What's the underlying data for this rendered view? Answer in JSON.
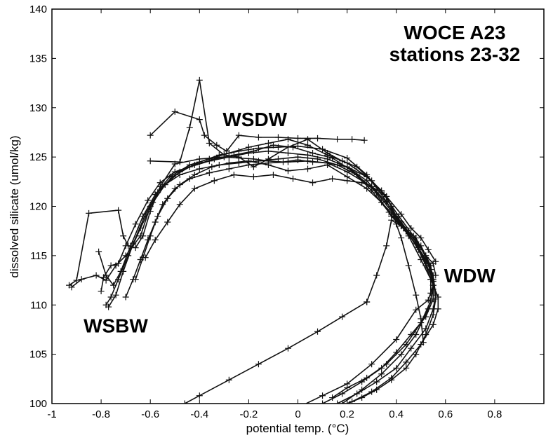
{
  "chart_data": {
    "type": "line",
    "title": "WOCE A23",
    "subtitle": "stations 23-32",
    "xlabel": "potential temp. (°C)",
    "ylabel": "dissolved silicate (umol/kg)",
    "xlim": [
      -1,
      1
    ],
    "ylim": [
      100,
      140
    ],
    "xticks": [
      -1,
      -0.8,
      -0.6,
      -0.4,
      -0.2,
      0,
      0.2,
      0.4,
      0.6,
      0.8
    ],
    "xtick_labels": [
      "-1",
      "-0.8",
      "-0.6",
      "-0.4",
      "-0.2",
      "0",
      "0.2",
      "0.4",
      "0.6",
      "0.8"
    ],
    "yticks": [
      100,
      105,
      110,
      115,
      120,
      125,
      130,
      135,
      140
    ],
    "ytick_labels": [
      "100",
      "105",
      "110",
      "115",
      "120",
      "125",
      "130",
      "135",
      "140"
    ],
    "marker": "+",
    "annotations": [
      {
        "text": "WSDW",
        "x": -0.3,
        "y": 130
      },
      {
        "text": "WDW",
        "x": 0.6,
        "y": 113
      },
      {
        "text": "WSBW",
        "x": -0.82,
        "y": 108.5
      }
    ],
    "series": [
      {
        "x": [
          -0.93,
          -0.9,
          -0.85,
          -0.73,
          -0.71,
          -0.69,
          -0.66,
          -0.63,
          -0.6,
          -0.56,
          -0.5,
          -0.4,
          -0.3,
          -0.24,
          -0.18,
          -0.12,
          -0.06,
          0.0,
          0.06,
          0.12,
          0.2,
          0.3,
          0.38,
          0.44,
          0.5,
          0.54,
          0.55,
          0.53,
          0.48,
          0.4,
          0.3,
          0.2,
          0.1,
          0.0
        ],
        "y": [
          112.0,
          112.5,
          119.3,
          119.6,
          117.0,
          116.0,
          115.8,
          117.0,
          119.5,
          122.0,
          124.3,
          124.8,
          125.0,
          124.9,
          124.8,
          124.6,
          124.5,
          124.7,
          124.5,
          124.4,
          123.5,
          122.0,
          119.0,
          117.5,
          116.0,
          114.0,
          112.0,
          110.5,
          109.5,
          106.5,
          104.0,
          102.0,
          100.8,
          99.6
        ]
      },
      {
        "x": [
          -0.92,
          -0.88,
          -0.82,
          -0.78,
          -0.74,
          -0.7,
          -0.64,
          -0.6,
          -0.54,
          -0.48,
          -0.4,
          -0.32,
          -0.24,
          -0.16,
          -0.08,
          0.0,
          0.1,
          0.2,
          0.28,
          0.36,
          0.42,
          0.48,
          0.53,
          0.55,
          0.54,
          0.5,
          0.44,
          0.36,
          0.28,
          0.2,
          0.14
        ],
        "y": [
          111.8,
          112.6,
          113.0,
          112.5,
          114.0,
          115.0,
          117.0,
          120.0,
          122.2,
          123.5,
          124.5,
          125.2,
          125.6,
          125.9,
          126.0,
          126.1,
          125.8,
          124.9,
          123.2,
          120.5,
          118.0,
          116.2,
          114.2,
          112.0,
          110.4,
          108.2,
          106.0,
          104.0,
          102.6,
          101.6,
          100.6
        ]
      },
      {
        "x": [
          -0.8,
          -0.79,
          -0.76,
          -0.73,
          -0.7,
          -0.66,
          -0.61,
          -0.56,
          -0.5,
          -0.42,
          -0.34,
          -0.26,
          -0.18,
          -0.1,
          -0.02,
          0.06,
          0.14,
          0.22,
          0.3,
          0.37,
          0.43,
          0.49,
          0.54,
          0.55,
          0.53,
          0.48,
          0.42,
          0.34,
          0.26,
          0.18
        ],
        "y": [
          111.4,
          112.8,
          114.0,
          114.2,
          116.0,
          118.2,
          120.6,
          122.4,
          123.5,
          124.2,
          124.8,
          125.2,
          125.6,
          126.2,
          126.0,
          125.4,
          124.9,
          123.6,
          121.6,
          119.4,
          117.8,
          115.8,
          113.6,
          111.6,
          109.6,
          107.0,
          105.0,
          103.0,
          101.4,
          100.0
        ]
      },
      {
        "x": [
          -0.81,
          -0.78,
          -0.75,
          -0.72,
          -0.68,
          -0.63,
          -0.58,
          -0.52,
          -0.44,
          -0.36,
          -0.28,
          -0.2,
          -0.12,
          -0.04,
          0.04,
          0.12,
          0.2,
          0.28,
          0.35,
          0.41,
          0.47,
          0.52,
          0.55,
          0.56,
          0.55,
          0.52,
          0.46,
          0.4,
          0.32,
          0.24,
          0.16,
          0.08
        ],
        "y": [
          115.4,
          113.0,
          112.0,
          113.4,
          116.0,
          119.0,
          121.2,
          123.0,
          124.2,
          124.8,
          125.4,
          126.0,
          126.4,
          126.8,
          126.2,
          125.2,
          124.4,
          123.0,
          121.2,
          119.0,
          117.0,
          115.0,
          113.0,
          111.0,
          109.6,
          107.6,
          105.6,
          103.6,
          102.2,
          101.0,
          100.0,
          99.4
        ]
      },
      {
        "x": [
          -0.78,
          -0.76,
          -0.73,
          -0.69,
          -0.64,
          -0.59,
          -0.54,
          -0.48,
          -0.4,
          -0.32,
          -0.24,
          -0.16,
          -0.08,
          0.0,
          0.08,
          0.16,
          0.24,
          0.32,
          0.39,
          0.45,
          0.5,
          0.54,
          0.57,
          0.57,
          0.55,
          0.5,
          0.44,
          0.38,
          0.3,
          0.22,
          0.14,
          0.06
        ],
        "y": [
          110.0,
          110.8,
          112.6,
          115.0,
          117.8,
          120.4,
          122.2,
          123.2,
          123.8,
          124.2,
          124.4,
          124.6,
          124.8,
          125.0,
          124.8,
          124.2,
          123.2,
          121.4,
          119.2,
          117.0,
          114.6,
          112.6,
          110.8,
          109.6,
          108.0,
          106.0,
          104.2,
          102.6,
          101.2,
          100.2,
          99.4,
          99.0
        ]
      },
      {
        "x": [
          -0.77,
          -0.74,
          -0.71,
          -0.67,
          -0.62,
          -0.57,
          -0.51,
          -0.44,
          -0.36,
          -0.28,
          -0.2,
          -0.12,
          -0.04,
          0.04,
          0.12,
          0.2,
          0.28,
          0.36,
          0.42,
          0.48,
          0.52,
          0.55,
          0.55,
          0.52,
          0.46,
          0.4,
          0.34,
          0.26,
          0.18,
          0.1,
          0.02
        ],
        "y": [
          109.8,
          111.0,
          113.4,
          116.2,
          119.2,
          121.4,
          123.0,
          124.0,
          124.6,
          125.0,
          125.4,
          125.6,
          125.4,
          125.2,
          124.8,
          124.0,
          122.6,
          120.4,
          118.4,
          116.4,
          114.2,
          112.4,
          110.6,
          108.8,
          107.0,
          105.2,
          103.6,
          102.2,
          101.0,
          100.0,
          99.2
        ]
      },
      {
        "x": [
          -0.7,
          -0.67,
          -0.64,
          -0.61,
          -0.58,
          -0.55,
          -0.5,
          -0.44,
          -0.36,
          -0.28,
          -0.2,
          -0.12,
          -0.04,
          0.04,
          0.12,
          0.2,
          0.28,
          0.34,
          0.38,
          0.4,
          0.42,
          0.45,
          0.48,
          0.5,
          0.51
        ],
        "y": [
          110.8,
          112.6,
          114.6,
          116.6,
          118.4,
          120.2,
          121.8,
          122.8,
          123.4,
          123.8,
          124.2,
          124.4,
          124.5,
          124.6,
          124.4,
          124.0,
          123.0,
          121.6,
          120.0,
          118.2,
          116.8,
          114.0,
          111.0,
          108.6,
          106.2
        ]
      },
      {
        "x": [
          -0.66,
          -0.63,
          -0.6,
          -0.57,
          -0.53,
          -0.48,
          -0.42,
          -0.35,
          -0.28,
          -0.2,
          -0.12,
          -0.04,
          0.04,
          0.12,
          0.2,
          0.28,
          0.34,
          0.4,
          0.45,
          0.49,
          0.52,
          0.54,
          0.54
        ],
        "y": [
          112.6,
          114.8,
          117.0,
          119.0,
          120.8,
          122.2,
          123.2,
          124.0,
          124.4,
          124.6,
          124.2,
          123.6,
          123.8,
          124.2,
          123.0,
          121.8,
          120.4,
          118.8,
          117.2,
          115.6,
          114.0,
          112.6,
          111.2
        ]
      },
      {
        "x": [
          -0.62,
          -0.58,
          -0.53,
          -0.48,
          -0.42,
          -0.34,
          -0.26,
          -0.18,
          -0.1,
          -0.02,
          0.06,
          0.14,
          0.2,
          0.26,
          0.3,
          0.36,
          0.4,
          0.44,
          0.48,
          0.52,
          0.55,
          0.56
        ],
        "y": [
          114.8,
          116.6,
          118.4,
          120.2,
          121.8,
          122.6,
          123.2,
          123.0,
          123.2,
          122.8,
          122.4,
          122.8,
          122.6,
          122.4,
          122.0,
          121.0,
          119.0,
          117.6,
          116.4,
          115.0,
          114.2,
          113.0
        ]
      },
      {
        "x": [
          -0.6,
          -0.5,
          -0.4,
          -0.38,
          -0.33,
          -0.29,
          -0.24,
          -0.16,
          -0.08,
          0.0,
          0.08,
          0.16,
          0.22,
          0.27
        ],
        "y": [
          127.2,
          129.6,
          128.8,
          127.2,
          126.2,
          125.6,
          127.2,
          127.0,
          127.0,
          126.9,
          126.9,
          126.8,
          126.8,
          126.7
        ]
      },
      {
        "x": [
          -0.6,
          -0.48,
          -0.44,
          -0.4,
          -0.36,
          -0.3,
          -0.24,
          -0.18,
          -0.12,
          -0.04,
          0.04,
          0.12,
          0.18,
          0.24,
          0.3,
          0.36,
          0.42,
          0.46,
          0.5,
          0.53,
          0.56
        ],
        "y": [
          124.6,
          124.5,
          128.0,
          132.8,
          126.4,
          125.2,
          125.0,
          124.0,
          124.8,
          126.0,
          126.8,
          125.4,
          124.6,
          124.0,
          122.6,
          121.0,
          119.2,
          117.8,
          116.8,
          115.6,
          114.4
        ]
      },
      {
        "x": [
          0.28,
          0.18,
          0.08,
          -0.04,
          -0.16,
          -0.28,
          -0.4,
          -0.46
        ],
        "y": [
          110.3,
          108.8,
          107.3,
          105.6,
          104.0,
          102.4,
          100.8,
          100.0
        ]
      },
      {
        "x": [
          0.28,
          0.32,
          0.36,
          0.38,
          0.42,
          0.48,
          0.52,
          0.55,
          0.56,
          0.55,
          0.52,
          0.48,
          0.44,
          0.38,
          0.32,
          0.26,
          0.2,
          0.14,
          0.08,
          0.02
        ],
        "y": [
          110.3,
          113.0,
          116.0,
          118.6,
          118.0,
          116.8,
          114.8,
          112.6,
          110.6,
          109.0,
          107.0,
          105.0,
          103.6,
          102.4,
          101.4,
          100.6,
          100.0,
          99.6,
          99.4,
          99.2
        ]
      }
    ]
  }
}
